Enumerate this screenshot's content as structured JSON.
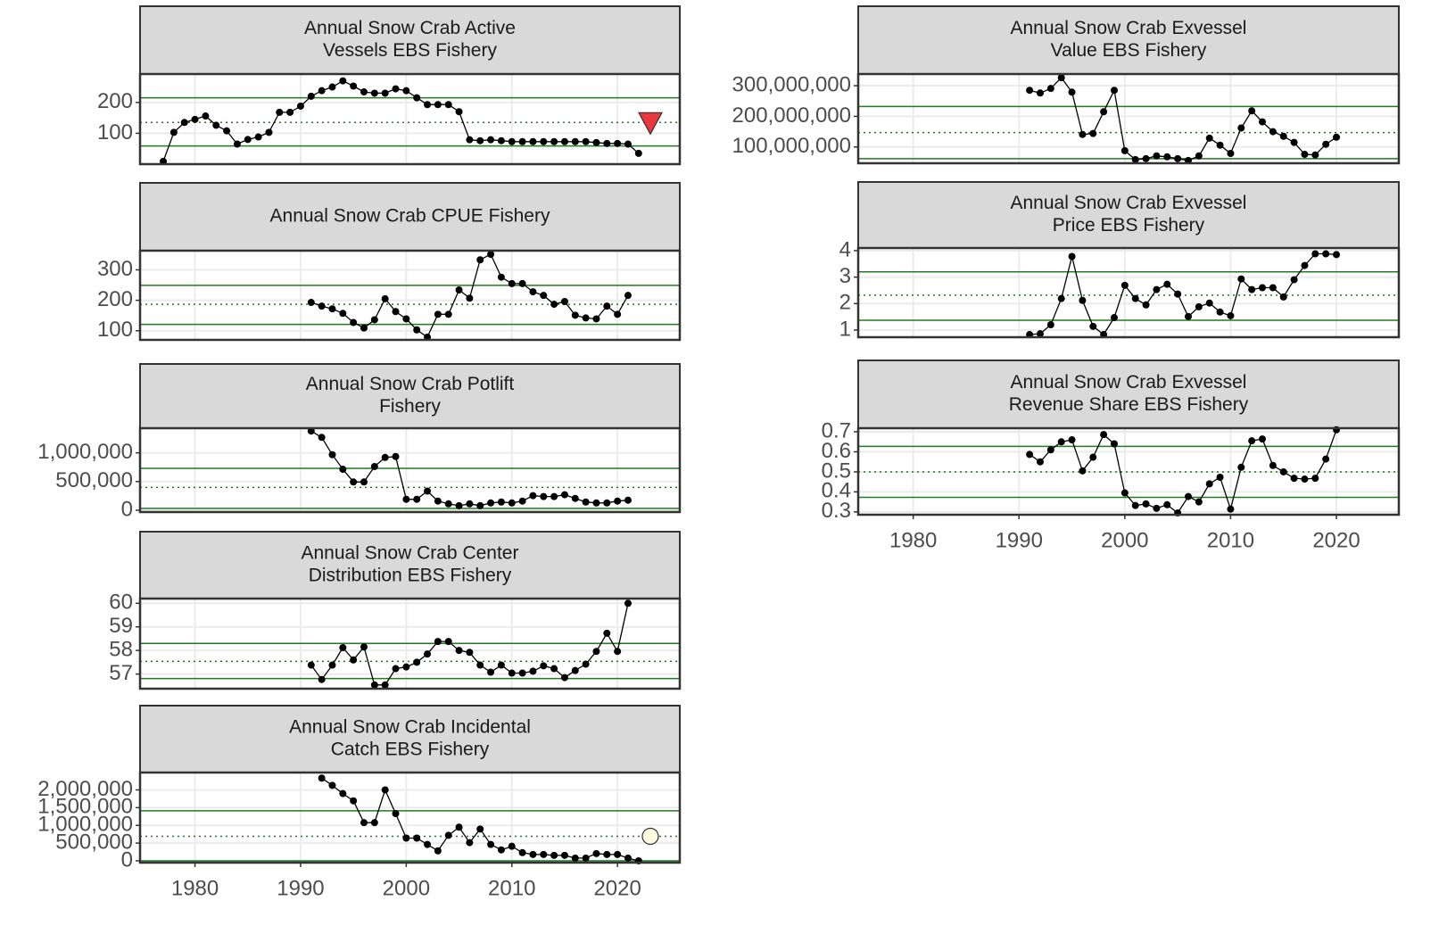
{
  "chart_data": [
    {
      "type": "line",
      "title": [
        "Annual Snow Crab Active",
        "Vessels EBS Fishery"
      ],
      "color": "#000000",
      "ref_color": "#217a21",
      "grid": true,
      "x": [
        1977,
        1978,
        1979,
        1980,
        1981,
        1982,
        1983,
        1984,
        1985,
        1986,
        1987,
        1988,
        1989,
        1990,
        1991,
        1992,
        1993,
        1994,
        1995,
        1996,
        1997,
        1998,
        1999,
        2000,
        2001,
        2002,
        2003,
        2004,
        2005,
        2006,
        2007,
        2008,
        2009,
        2010,
        2011,
        2012,
        2013,
        2014,
        2015,
        2016,
        2017,
        2018,
        2019,
        2020,
        2021,
        2022
      ],
      "values": [
        9,
        103,
        135,
        145,
        156,
        126,
        108,
        65,
        80,
        88,
        103,
        168,
        168,
        188,
        220,
        238,
        250,
        270,
        253,
        234,
        230,
        230,
        244,
        238,
        215,
        193,
        193,
        193,
        170,
        79,
        76,
        79,
        76,
        73,
        73,
        73,
        73,
        73,
        73,
        73,
        73,
        70,
        67,
        67,
        65,
        35
      ],
      "mean": 135,
      "upper": 215,
      "lower": 59,
      "status_marker": {
        "shape": "triangle-down",
        "color": "#e8373d"
      },
      "xlim": [
        1974.8,
        2025.9
      ],
      "xticks": [
        1980,
        1990,
        2000,
        2010,
        2020
      ],
      "ylim": [
        0,
        292
      ],
      "yticks": [
        100,
        200
      ]
    },
    {
      "type": "line",
      "title": [
        "Annual Snow Crab CPUE Fishery"
      ],
      "color": "#000000",
      "ref_color": "#217a21",
      "grid": true,
      "x": [
        1991,
        1992,
        1993,
        1994,
        1995,
        1996,
        1997,
        1998,
        1999,
        2000,
        2001,
        2002,
        2003,
        2004,
        2005,
        2006,
        2007,
        2008,
        2009,
        2010,
        2011,
        2012,
        2013,
        2014,
        2015,
        2016,
        2017,
        2018,
        2019,
        2020,
        2021
      ],
      "values": [
        193,
        181,
        172,
        157,
        127,
        109,
        136,
        205,
        163,
        139,
        103,
        79,
        154,
        154,
        234,
        207,
        333,
        351,
        276,
        255,
        255,
        228,
        216,
        187,
        196,
        151,
        142,
        139,
        181,
        154,
        216
      ],
      "mean": 187,
      "upper": 249,
      "lower": 121,
      "xlim": [
        1974.8,
        2025.9
      ],
      "xticks": [
        1980,
        1990,
        2000,
        2010,
        2020
      ],
      "ylim": [
        70,
        363
      ],
      "yticks": [
        100,
        200,
        300
      ]
    },
    {
      "type": "line",
      "title": [
        "Annual Snow Crab Potlift",
        "Fishery"
      ],
      "color": "#000000",
      "ref_color": "#217a21",
      "grid": true,
      "x": [
        1991,
        1992,
        1993,
        1994,
        1995,
        1996,
        1997,
        1998,
        1999,
        2000,
        2001,
        2002,
        2003,
        2004,
        2005,
        2006,
        2007,
        2008,
        2009,
        2010,
        2011,
        2012,
        2013,
        2014,
        2015,
        2016,
        2017,
        2018,
        2019,
        2020,
        2021
      ],
      "values": [
        1380000,
        1270000,
        968000,
        714000,
        492000,
        492000,
        762000,
        920000,
        936000,
        190000,
        190000,
        333000,
        159000,
        111000,
        79000,
        111000,
        79000,
        127000,
        143000,
        127000,
        159000,
        254000,
        238000,
        238000,
        270000,
        206000,
        143000,
        127000,
        127000,
        159000,
        175000
      ],
      "mean": 397000,
      "upper": 730000,
      "lower": 32000,
      "xlim": [
        1974.8,
        2025.9
      ],
      "xticks": [
        1980,
        1990,
        2000,
        2010,
        2020
      ],
      "ylim": [
        -32000,
        1430000
      ],
      "yticks": [
        0,
        {
          "value": 500000,
          "label": "500,000"
        },
        {
          "value": 1000000,
          "label": "1,000,000"
        }
      ]
    },
    {
      "type": "line",
      "title": [
        "Annual Snow Crab Center",
        "Distribution EBS Fishery"
      ],
      "color": "#000000",
      "ref_color": "#217a21",
      "grid": true,
      "x": [
        1991,
        1992,
        1993,
        1994,
        1995,
        1996,
        1997,
        1998,
        1999,
        2000,
        2001,
        2002,
        2003,
        2004,
        2005,
        2006,
        2007,
        2008,
        2009,
        2010,
        2011,
        2012,
        2013,
        2014,
        2015,
        2016,
        2017,
        2018,
        2019,
        2020,
        2021
      ],
      "values": [
        57.38,
        56.77,
        57.38,
        58.12,
        57.6,
        58.15,
        56.54,
        56.54,
        57.23,
        57.3,
        57.5,
        57.85,
        58.38,
        58.38,
        58,
        57.92,
        57.38,
        57.08,
        57.38,
        57.04,
        57.04,
        57.12,
        57.35,
        57.23,
        56.85,
        57.15,
        57.42,
        57.96,
        58.73,
        57.96,
        60
      ],
      "mean": 57.54,
      "upper": 58.3,
      "lower": 56.81,
      "xlim": [
        1974.8,
        2025.9
      ],
      "xticks": [
        1980,
        1990,
        2000,
        2010,
        2020
      ],
      "ylim": [
        56.38,
        60.2
      ],
      "yticks": [
        57,
        58,
        59,
        60
      ]
    },
    {
      "type": "line",
      "title": [
        "Annual Snow Crab Incidental",
        "Catch EBS Fishery"
      ],
      "color": "#000000",
      "ref_color": "#217a21",
      "grid": true,
      "x": [
        1992,
        1993,
        1994,
        1995,
        1996,
        1997,
        1998,
        1999,
        2000,
        2001,
        2002,
        2003,
        2004,
        2005,
        2006,
        2007,
        2008,
        2009,
        2010,
        2011,
        2012,
        2013,
        2014,
        2015,
        2016,
        2017,
        2018,
        2019,
        2020,
        2021,
        2022
      ],
      "values": [
        2333000,
        2128000,
        1897000,
        1692000,
        1077000,
        1077000,
        2000000,
        1333000,
        641000,
        641000,
        462000,
        282000,
        718000,
        949000,
        513000,
        897000,
        462000,
        308000,
        410000,
        231000,
        179000,
        179000,
        154000,
        154000,
        77000,
        77000,
        205000,
        179000,
        179000,
        77000,
        0
      ],
      "mean": 692000,
      "upper": 1410000,
      "lower": 0,
      "status_marker": {
        "shape": "circle",
        "color": "#fffde0"
      },
      "xlim": [
        1974.8,
        2025.9
      ],
      "xticks": [
        1980,
        1990,
        2000,
        2010,
        2020
      ],
      "ylim": [
        -51000,
        2490000
      ],
      "yticks": [
        0,
        {
          "value": 500000,
          "label": "500,000"
        },
        {
          "value": 1000000,
          "label": "1,000,000"
        },
        {
          "value": 1500000,
          "label": "1,500,000"
        },
        {
          "value": 2000000,
          "label": "2,000,000"
        }
      ]
    },
    {
      "type": "line",
      "title": [
        "Annual Snow Crab Exvessel",
        "Value EBS Fishery"
      ],
      "color": "#000000",
      "ref_color": "#217a21",
      "grid": true,
      "x": [
        1991,
        1992,
        1993,
        1994,
        1995,
        1996,
        1997,
        1998,
        1999,
        2000,
        2001,
        2002,
        2003,
        2004,
        2005,
        2006,
        2007,
        2008,
        2009,
        2010,
        2011,
        2012,
        2013,
        2014,
        2015,
        2016,
        2017,
        2018,
        2019,
        2020
      ],
      "values": [
        285000000,
        276000000,
        291000000,
        326000000,
        279000000,
        141000000,
        144000000,
        215000000,
        285000000,
        88000000,
        59000000,
        62000000,
        71000000,
        68000000,
        62000000,
        56000000,
        71000000,
        129000000,
        106000000,
        79000000,
        162000000,
        218000000,
        182000000,
        150000000,
        135000000,
        115000000,
        76000000,
        74000000,
        109000000,
        132000000
      ],
      "mean": 147000000,
      "upper": 232000000,
      "lower": 62000000,
      "xlim": [
        1974.8,
        2025.9
      ],
      "xticks": [
        1980,
        1990,
        2000,
        2010,
        2020
      ],
      "ylim": [
        47000000,
        338000000
      ],
      "yticks": [
        {
          "value": 100000000,
          "label": "100,000,000"
        },
        {
          "value": 200000000,
          "label": "200,000,000"
        },
        {
          "value": 300000000,
          "label": "300,000,000"
        }
      ]
    },
    {
      "type": "line",
      "title": [
        "Annual Snow Crab Exvessel",
        "Price EBS Fishery"
      ],
      "color": "#000000",
      "ref_color": "#217a21",
      "grid": true,
      "x": [
        1991,
        1992,
        1993,
        1994,
        1995,
        1996,
        1997,
        1998,
        1999,
        2000,
        2001,
        2002,
        2003,
        2004,
        2005,
        2006,
        2007,
        2008,
        2009,
        2010,
        2011,
        2012,
        2013,
        2014,
        2015,
        2016,
        2017,
        2018,
        2019,
        2020
      ],
      "values": [
        0.83,
        0.86,
        1.2,
        2.19,
        3.78,
        2.12,
        1.14,
        0.83,
        1.47,
        2.69,
        2.19,
        1.95,
        2.53,
        2.73,
        2.36,
        1.51,
        1.88,
        2.02,
        1.68,
        1.54,
        2.93,
        2.53,
        2.6,
        2.6,
        2.25,
        2.9,
        3.44,
        3.88,
        3.88,
        3.85
      ],
      "mean": 2.32,
      "upper": 3.2,
      "lower": 1.37,
      "xlim": [
        1974.8,
        2025.9
      ],
      "xticks": [
        1980,
        1990,
        2000,
        2010,
        2020
      ],
      "ylim": [
        0.73,
        4.1
      ],
      "yticks": [
        1,
        2,
        3,
        4
      ]
    },
    {
      "type": "line",
      "title": [
        "Annual Snow Crab Exvessel",
        "Revenue Share EBS Fishery"
      ],
      "color": "#000000",
      "ref_color": "#217a21",
      "grid": true,
      "x": [
        1991,
        1992,
        1993,
        1994,
        1995,
        1996,
        1997,
        1998,
        1999,
        2000,
        2001,
        2002,
        2003,
        2004,
        2005,
        2006,
        2007,
        2008,
        2009,
        2010,
        2011,
        2012,
        2013,
        2014,
        2015,
        2016,
        2017,
        2018,
        2019,
        2020
      ],
      "values": [
        0.587,
        0.55,
        0.61,
        0.65,
        0.66,
        0.505,
        0.573,
        0.686,
        0.64,
        0.395,
        0.332,
        0.34,
        0.318,
        0.336,
        0.295,
        0.377,
        0.35,
        0.44,
        0.473,
        0.314,
        0.523,
        0.655,
        0.664,
        0.532,
        0.5,
        0.468,
        0.464,
        0.468,
        0.564,
        0.71
      ],
      "mean": 0.5,
      "upper": 0.627,
      "lower": 0.373,
      "xlim": [
        1974.8,
        2025.9
      ],
      "xticks": [
        1980,
        1990,
        2000,
        2010,
        2020
      ],
      "ylim": [
        0.286,
        0.718
      ],
      "yticks": [
        0.3,
        0.4,
        0.5,
        0.6,
        0.7
      ]
    }
  ]
}
